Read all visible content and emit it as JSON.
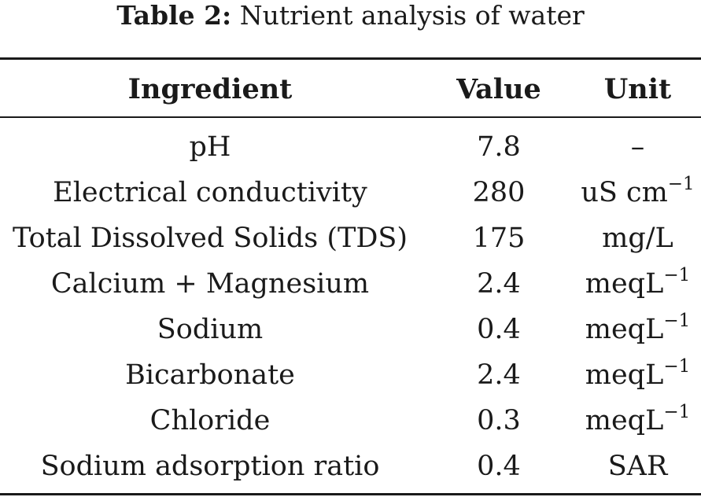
{
  "caption": {
    "label": "Table 2:",
    "text": "Nutrient analysis of water"
  },
  "table": {
    "columns": [
      "Ingredient",
      "Value",
      "Unit"
    ],
    "rows": [
      {
        "ingredient": "pH",
        "value": "7.8",
        "unit_base": "–",
        "unit_sup": ""
      },
      {
        "ingredient": "Electrical conductivity",
        "value": "280",
        "unit_base": "uS cm",
        "unit_sup": "−1"
      },
      {
        "ingredient": "Total Dissolved Solids (TDS)",
        "value": "175",
        "unit_base": "mg/L",
        "unit_sup": ""
      },
      {
        "ingredient": "Calcium + Magnesium",
        "value": "2.4",
        "unit_base": "meqL",
        "unit_sup": "−1"
      },
      {
        "ingredient": "Sodium",
        "value": "0.4",
        "unit_base": "meqL",
        "unit_sup": "−1"
      },
      {
        "ingredient": "Bicarbonate",
        "value": "2.4",
        "unit_base": "meqL",
        "unit_sup": "−1"
      },
      {
        "ingredient": "Chloride",
        "value": "0.3",
        "unit_base": "meqL",
        "unit_sup": "−1"
      },
      {
        "ingredient": "Sodium adsorption ratio",
        "value": "0.4",
        "unit_base": "SAR",
        "unit_sup": ""
      }
    ]
  }
}
